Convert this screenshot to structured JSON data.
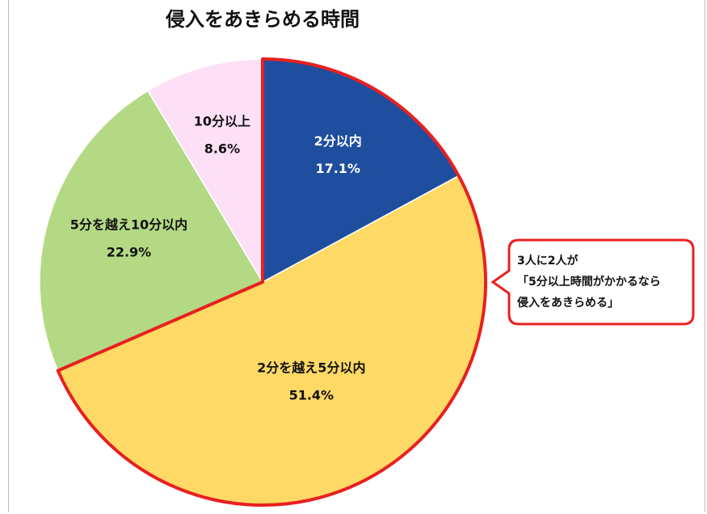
{
  "chart_data": {
    "type": "pie",
    "title": "侵入をあきらめる時間",
    "slices": [
      {
        "label": "2分以内",
        "value": 17.1,
        "value_label": "17.1%",
        "color": "#1f4e9e",
        "text_color": "#ffffff"
      },
      {
        "label": "2分を越え5分以内",
        "value": 51.4,
        "value_label": "51.4%",
        "color": "#ffd966",
        "text_color": "#111111"
      },
      {
        "label": "5分を越え10分以内",
        "value": 22.9,
        "value_label": "22.9%",
        "color": "#b4d984",
        "text_color": "#111111"
      },
      {
        "label": "10分以上",
        "value": 8.6,
        "value_label": "8.6%",
        "color": "#fde0f5",
        "text_color": "#111111"
      }
    ],
    "start": "12 o'clock, clockwise",
    "highlight_color": "#e8201f",
    "annotation": {
      "lines": [
        "3人に2人が",
        "「5分以上時間がかかるなら",
        "侵入をあきらめる」"
      ],
      "border_color": "#e8201f"
    }
  }
}
